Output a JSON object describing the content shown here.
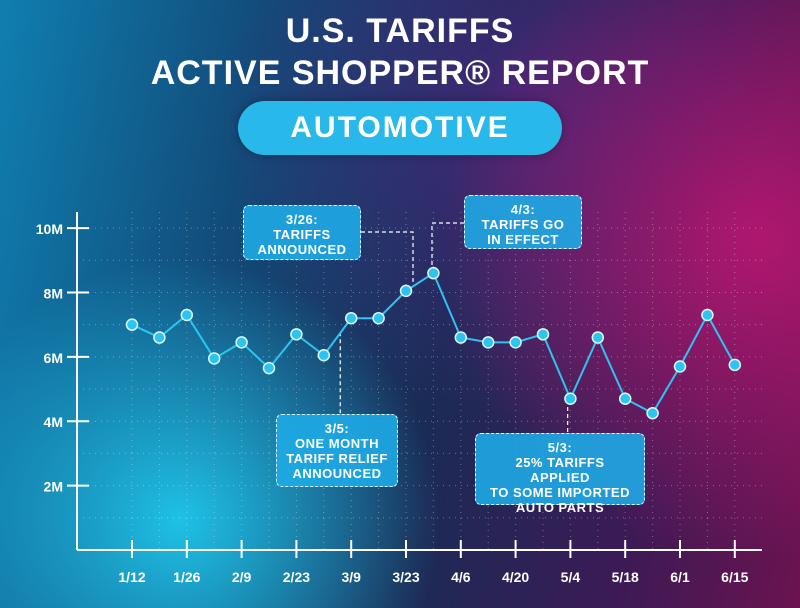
{
  "header": {
    "title_line1": "U.S. TARIFFS",
    "title_line2": "ACTIVE SHOPPER® REPORT",
    "category": "AUTOMOTIVE"
  },
  "annotations": [
    {
      "date": "3/26:",
      "lines": [
        "TARIFFS",
        "ANNOUNCED"
      ]
    },
    {
      "date": "4/3:",
      "lines": [
        "TARIFFS GO",
        "IN EFFECT"
      ]
    },
    {
      "date": "3/5:",
      "lines": [
        "ONE MONTH",
        "TARIFF RELIEF",
        "ANNOUNCED"
      ]
    },
    {
      "date": "5/3:",
      "lines": [
        "25% TARIFFS APPLIED",
        "TO SOME IMPORTED",
        "AUTO PARTS"
      ]
    }
  ],
  "colors": {
    "line": "#2ec4f0",
    "point": "#2ec4f0",
    "axis": "#ffffff",
    "accent": "#29b8ea"
  },
  "chart_data": {
    "type": "line",
    "title": "",
    "xlabel": "",
    "ylabel": "",
    "ylim": [
      0,
      10500000
    ],
    "y_ticks": [
      2000000,
      4000000,
      6000000,
      8000000,
      10000000
    ],
    "y_tick_labels": [
      "2M",
      "4M",
      "6M",
      "8M",
      "10M"
    ],
    "x_tick_labels": [
      "1/12",
      "1/26",
      "2/9",
      "2/23",
      "3/9",
      "3/23",
      "4/6",
      "4/20",
      "5/4",
      "5/18",
      "6/1",
      "6/15"
    ],
    "x": [
      "1/12",
      "1/19",
      "1/26",
      "2/2",
      "2/9",
      "2/16",
      "2/23",
      "3/2",
      "3/9",
      "3/16",
      "3/23",
      "3/30",
      "4/6",
      "4/13",
      "4/20",
      "4/27",
      "5/4",
      "5/11",
      "5/18",
      "5/25",
      "6/1",
      "6/8",
      "6/15"
    ],
    "series": [
      {
        "values": [
          7000000,
          6600000,
          7300000,
          5950000,
          6450000,
          5650000,
          6700000,
          6050000,
          7200000,
          7200000,
          8050000,
          8600000,
          6600000,
          6450000,
          6450000,
          6700000,
          4700000,
          6600000,
          4700000,
          4250000,
          5700000,
          7300000,
          5750000
        ]
      }
    ],
    "grid": true
  }
}
